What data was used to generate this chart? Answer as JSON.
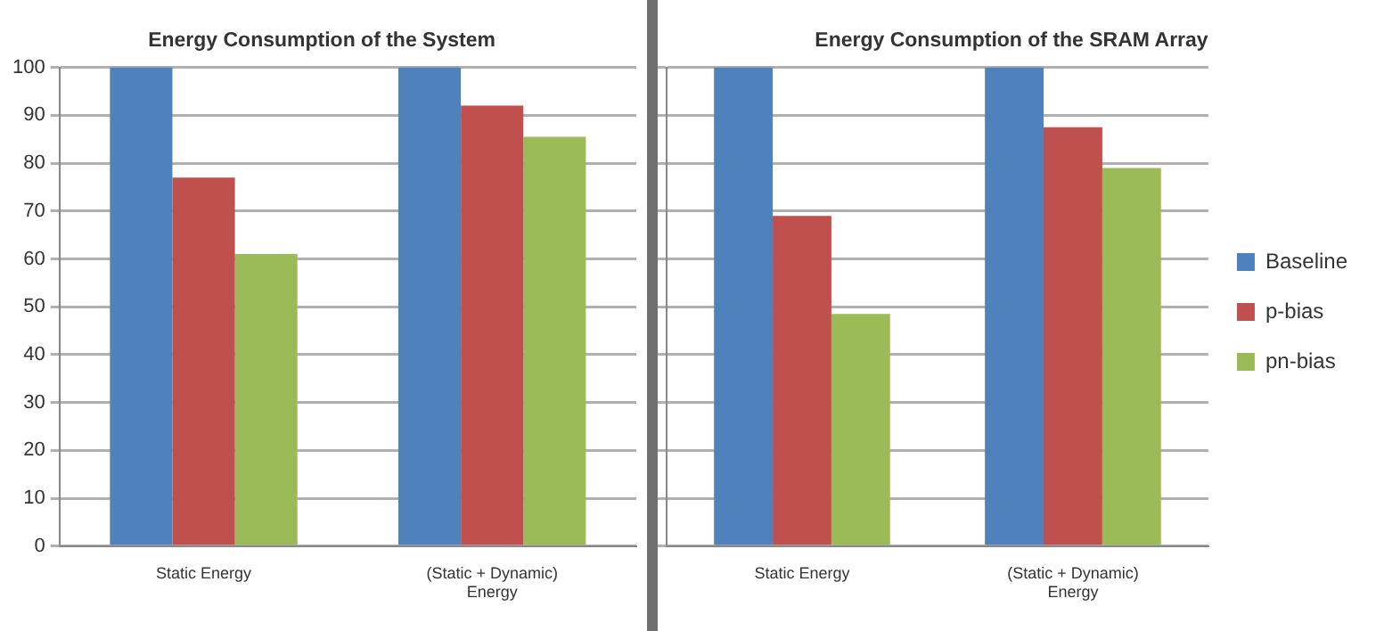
{
  "chart_data": [
    {
      "type": "bar",
      "title": "Energy Consumption of the System",
      "categories": [
        "Static Energy",
        "(Static + Dynamic) Energy"
      ],
      "series": [
        {
          "color": "#4f81bd",
          "values": [
            100,
            100
          ]
        },
        {
          "color": "#c0504d",
          "values": [
            77,
            92
          ]
        },
        {
          "color": "#9bbb59",
          "values": [
            61,
            85.5
          ]
        }
      ],
      "ylim": [
        0,
        100
      ],
      "yticks": [
        0,
        10,
        20,
        30,
        40,
        50,
        60,
        70,
        80,
        90,
        100
      ],
      "grid": "y"
    },
    {
      "type": "bar",
      "title": "Energy Consumption of the SRAM Array",
      "categories": [
        "Static Energy",
        "(Static + Dynamic) Energy"
      ],
      "series": [
        {
          "name": "Baseline",
          "color": "#4f81bd",
          "values": [
            100,
            100
          ]
        },
        {
          "name": "p-bias",
          "color": "#c0504d",
          "values": [
            69,
            87.5
          ]
        },
        {
          "name": "pn-bias",
          "color": "#9bbb59",
          "values": [
            48.5,
            79
          ]
        }
      ],
      "ylim": [
        0,
        100
      ],
      "yticks": [
        0,
        10,
        20,
        30,
        40,
        50,
        60,
        70,
        80,
        90,
        100
      ],
      "grid": "y",
      "tick_labels": "x",
      "legend": "right"
    }
  ]
}
